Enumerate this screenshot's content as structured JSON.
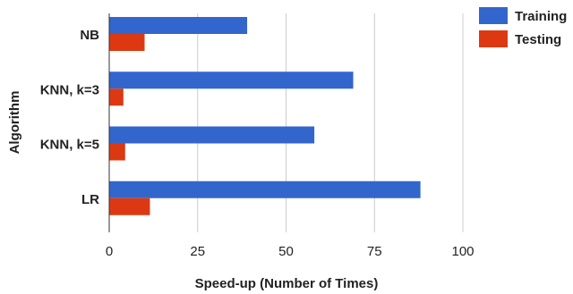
{
  "chart_data": {
    "type": "bar",
    "orientation": "horizontal",
    "categories": [
      "NB",
      "KNN, k=3",
      "KNN, k=5",
      "LR"
    ],
    "series": [
      {
        "name": "Training",
        "color": "#3366cc",
        "values": [
          39,
          69,
          58,
          88
        ]
      },
      {
        "name": "Testing",
        "color": "#dc3912",
        "values": [
          10,
          4,
          4.5,
          11.5
        ]
      }
    ],
    "xlabel": "Speed-up (Number of Times)",
    "ylabel": "Algorithm",
    "xlim": [
      0,
      100
    ],
    "xticks": [
      "0",
      "25",
      "50",
      "75",
      "100"
    ],
    "grid": true,
    "legend_position": "right"
  }
}
